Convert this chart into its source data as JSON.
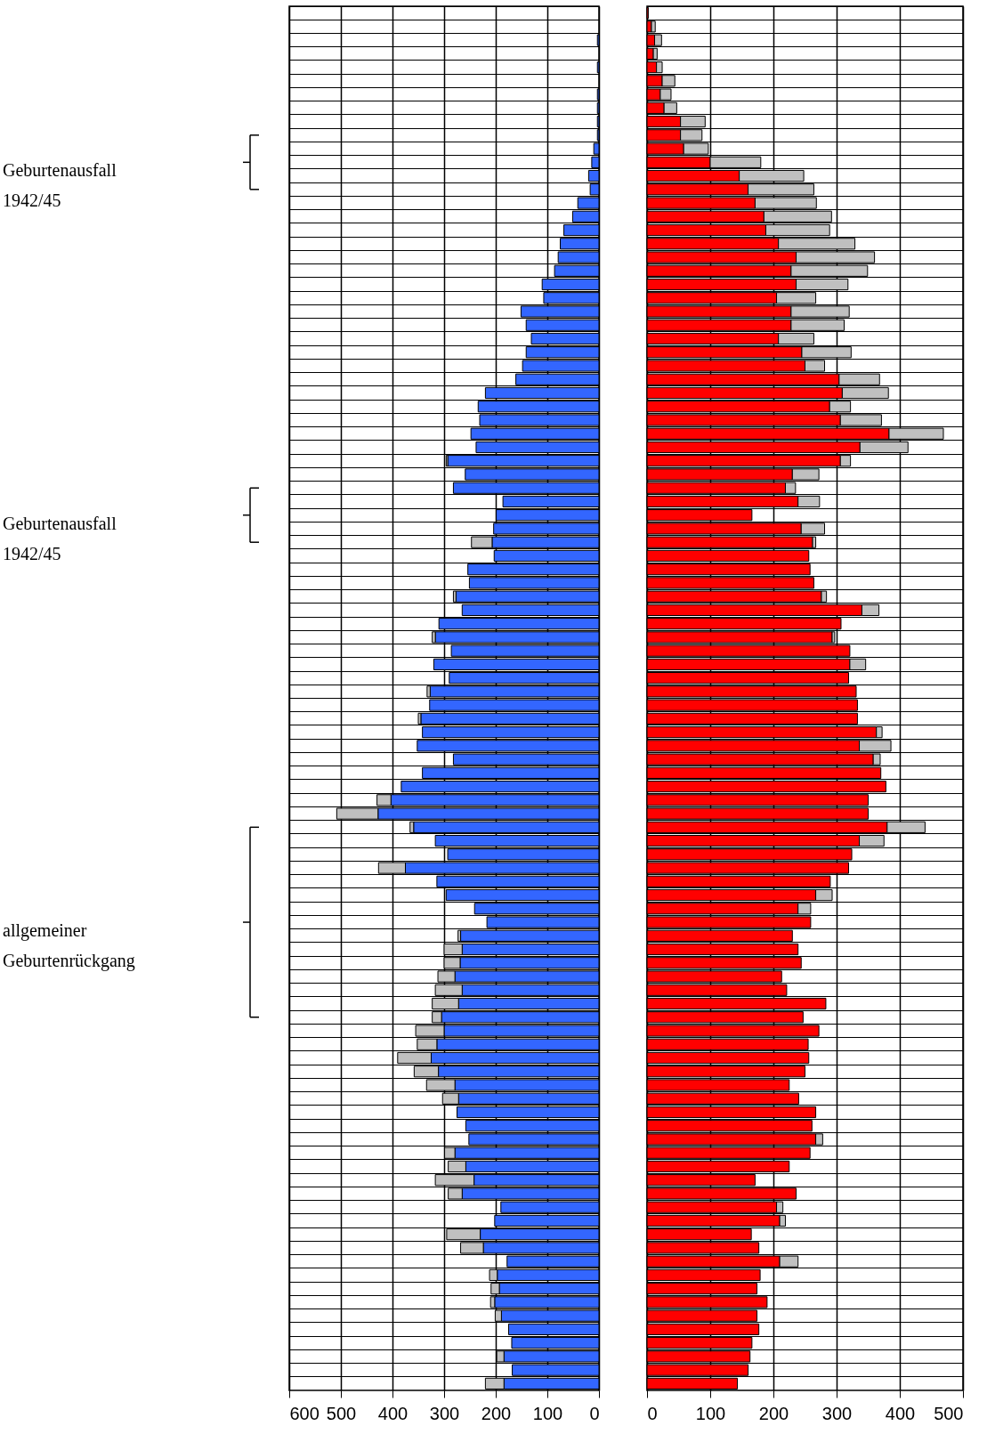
{
  "chart_data": [
    {
      "type": "bar",
      "orientation": "horizontal",
      "stacked": true,
      "categories": [
        null,
        null,
        null,
        null,
        null,
        null,
        null,
        null,
        null,
        null,
        null,
        null,
        null,
        null,
        null,
        null,
        null,
        null,
        null,
        null,
        null,
        null,
        null,
        null,
        null,
        null,
        null,
        null,
        null,
        null,
        null,
        null,
        null,
        null,
        null,
        null,
        null,
        null,
        null,
        null,
        null,
        null,
        null,
        null,
        null,
        null,
        null,
        null,
        null,
        null,
        null,
        null,
        null,
        null,
        null,
        null,
        null,
        null,
        null,
        null,
        null,
        null,
        null,
        null,
        null,
        null,
        null,
        null,
        null,
        null,
        null,
        null,
        null,
        null,
        null,
        null,
        null,
        null,
        null,
        null,
        null,
        null,
        null,
        null,
        null,
        null,
        null,
        null,
        null,
        null,
        null,
        null,
        null,
        null,
        null,
        null,
        null,
        null,
        null,
        null,
        null,
        null
      ],
      "series": [
        {
          "color": "#3366ff",
          "values": [
            null,
            null,
            3,
            null,
            3,
            null,
            3,
            3,
            3,
            3,
            10,
            14,
            20,
            17,
            41,
            51,
            68,
            75,
            79,
            86,
            110,
            107,
            151,
            141,
            131,
            141,
            148,
            161,
            220,
            234,
            231,
            248,
            238,
            293,
            259,
            282,
            186,
            199,
            204,
            207,
            203,
            254,
            251,
            277,
            265,
            310,
            317,
            286,
            320,
            290,
            327,
            328,
            345,
            342,
            352,
            282,
            342,
            383,
            403,
            428,
            359,
            317,
            293,
            375,
            314,
            296,
            241,
            217,
            268,
            265,
            269,
            279,
            265,
            272,
            305,
            300,
            314,
            325,
            311,
            279,
            272,
            275,
            258,
            252,
            279,
            258,
            242,
            265,
            190,
            202,
            230,
            224,
            178,
            197,
            193,
            202,
            189,
            175,
            169,
            184,
            168,
            184
          ]
        },
        {
          "color": "#c0c0c0",
          "values": [
            null,
            null,
            null,
            null,
            null,
            null,
            null,
            null,
            null,
            null,
            null,
            null,
            null,
            null,
            null,
            null,
            null,
            null,
            null,
            null,
            null,
            null,
            null,
            null,
            null,
            null,
            null,
            null,
            null,
            null,
            null,
            null,
            null,
            3,
            null,
            null,
            null,
            null,
            null,
            40,
            null,
            null,
            null,
            5,
            null,
            null,
            6,
            null,
            null,
            null,
            6,
            null,
            5,
            null,
            null,
            null,
            null,
            null,
            27,
            80,
            7,
            null,
            null,
            52,
            null,
            null,
            null,
            null,
            5,
            35,
            31,
            33,
            52,
            51,
            18,
            55,
            38,
            65,
            47,
            55,
            31,
            null,
            null,
            null,
            20,
            34,
            75,
            27,
            null,
            null,
            65,
            44,
            null,
            15,
            16,
            8,
            12,
            null,
            null,
            14,
            null,
            36
          ]
        }
      ],
      "xlim": [
        600,
        0
      ],
      "xticks": [
        600,
        500,
        400,
        300,
        200,
        100,
        0
      ],
      "grid": true,
      "tick_labels": "x",
      "annotations": [
        "Geburtenausfall\n1942/45",
        "Geburtenausfall\n1942/45",
        "allgemeiner\nGeburtenrückgang"
      ]
    },
    {
      "type": "bar",
      "orientation": "horizontal",
      "stacked": true,
      "categories": [
        null,
        null,
        null,
        null,
        null,
        null,
        null,
        null,
        null,
        null,
        null,
        null,
        null,
        null,
        null,
        null,
        null,
        null,
        null,
        null,
        null,
        null,
        null,
        null,
        null,
        null,
        null,
        null,
        null,
        null,
        null,
        null,
        null,
        null,
        null,
        null,
        null,
        null,
        null,
        null,
        null,
        null,
        null,
        null,
        null,
        null,
        null,
        null,
        null,
        null,
        null,
        null,
        null,
        null,
        null,
        null,
        null,
        null,
        null,
        null,
        null,
        null,
        null,
        null,
        null,
        null,
        null,
        null,
        null,
        null,
        null,
        null,
        null,
        null,
        null,
        null,
        null,
        null,
        null,
        null,
        null,
        null,
        null,
        null,
        null,
        null,
        null,
        null,
        null,
        null,
        null,
        null,
        null,
        null,
        null,
        null,
        null,
        null,
        null,
        null,
        null,
        null
      ],
      "series": [
        {
          "color": "#ff0000",
          "values": [
            2,
            7,
            12,
            10,
            15,
            24,
            21,
            27,
            53,
            53,
            58,
            100,
            146,
            160,
            171,
            185,
            188,
            208,
            236,
            228,
            236,
            205,
            228,
            228,
            208,
            245,
            250,
            304,
            309,
            289,
            306,
            383,
            337,
            306,
            230,
            219,
            239,
            166,
            244,
            262,
            256,
            258,
            264,
            276,
            340,
            307,
            293,
            321,
            321,
            319,
            331,
            333,
            333,
            363,
            336,
            358,
            370,
            378,
            350,
            350,
            380,
            336,
            324,
            319,
            290,
            267,
            239,
            259,
            230,
            239,
            244,
            213,
            221,
            283,
            247,
            272,
            255,
            256,
            250,
            225,
            240,
            267,
            261,
            267,
            258,
            225,
            171,
            236,
            205,
            210,
            165,
            177,
            210,
            179,
            174,
            190,
            174,
            177,
            166,
            163,
            160,
            143
          ]
        },
        {
          "color": "#c0c0c0",
          "values": [
            null,
            6,
            11,
            6,
            9,
            20,
            17,
            20,
            39,
            34,
            39,
            80,
            102,
            104,
            97,
            107,
            101,
            121,
            124,
            121,
            82,
            62,
            92,
            84,
            56,
            78,
            31,
            64,
            73,
            33,
            65,
            86,
            76,
            16,
            42,
            16,
            34,
            null,
            37,
            5,
            null,
            null,
            null,
            8,
            27,
            null,
            4,
            null,
            25,
            null,
            null,
            null,
            null,
            9,
            50,
            11,
            null,
            null,
            null,
            null,
            60,
            39,
            null,
            null,
            null,
            26,
            20,
            null,
            null,
            null,
            null,
            null,
            null,
            null,
            null,
            null,
            null,
            null,
            null,
            null,
            null,
            null,
            null,
            11,
            null,
            null,
            null,
            null,
            10,
            9,
            null,
            null,
            29,
            null,
            null,
            null,
            null,
            null,
            null,
            null,
            null,
            null
          ]
        }
      ],
      "xlim": [
        0,
        500
      ],
      "xticks": [
        0,
        100,
        200,
        300,
        400,
        500
      ],
      "grid": true,
      "tick_labels": "x"
    }
  ]
}
